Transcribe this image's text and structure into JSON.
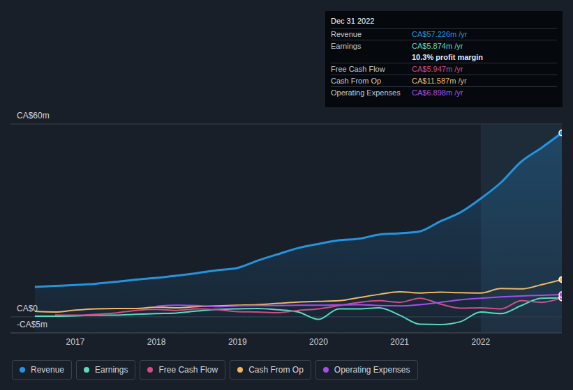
{
  "chart_data": {
    "type": "line",
    "x": [
      2016.5,
      2016.75,
      2017.0,
      2017.25,
      2017.5,
      2017.75,
      2018.0,
      2018.25,
      2018.5,
      2018.75,
      2019.0,
      2019.25,
      2019.5,
      2019.75,
      2020.0,
      2020.25,
      2020.5,
      2020.75,
      2021.0,
      2021.25,
      2021.5,
      2021.75,
      2022.0,
      2022.25,
      2022.5,
      2022.75,
      2023.0
    ],
    "series": [
      {
        "name": "Revenue",
        "type": "area",
        "color": "#2394df",
        "values": [
          9.3,
          9.6,
          9.9,
          10.3,
          10.9,
          11.6,
          12.1,
          12.8,
          13.6,
          14.5,
          15.2,
          17.5,
          19.5,
          21.4,
          22.7,
          23.8,
          24.3,
          25.6,
          26.0,
          26.6,
          29.7,
          32.5,
          36.8,
          41.8,
          48.3,
          52.6,
          57.226
        ]
      },
      {
        "name": "Earnings",
        "type": "line",
        "color": "#58dcc0",
        "values": [
          0.2,
          0.2,
          0.3,
          0.5,
          0.5,
          0.8,
          1.0,
          1.2,
          1.8,
          2.3,
          2.5,
          2.6,
          2.2,
          1.5,
          -0.8,
          2.5,
          2.5,
          2.8,
          0.5,
          -2.3,
          -2.4,
          -1.5,
          1.5,
          1.0,
          3.5,
          5.8,
          5.874
        ]
      },
      {
        "name": "Free Cash Flow",
        "type": "line",
        "color": "#d14d87",
        "values": [
          null,
          0.6,
          0.5,
          0.8,
          1.2,
          2.0,
          2.3,
          2.0,
          2.5,
          2.2,
          1.6,
          1.5,
          1.3,
          2.0,
          2.5,
          3.5,
          4.5,
          5.0,
          4.5,
          5.8,
          4.0,
          2.7,
          2.8,
          2.5,
          5.0,
          4.5,
          5.947
        ]
      },
      {
        "name": "Cash From Op",
        "type": "line",
        "color": "#f0b865",
        "values": [
          1.7,
          1.5,
          2.1,
          2.5,
          2.6,
          2.6,
          3.0,
          2.8,
          3.2,
          3.4,
          3.6,
          3.8,
          4.2,
          4.6,
          4.8,
          5.0,
          6.0,
          7.0,
          7.8,
          7.4,
          7.7,
          7.5,
          7.4,
          8.8,
          8.7,
          10.0,
          11.587
        ]
      },
      {
        "name": "Operating Expenses",
        "type": "line",
        "color": "#a54fe8",
        "values": [
          null,
          null,
          null,
          null,
          null,
          null,
          3.3,
          3.6,
          3.5,
          3.2,
          3.4,
          3.5,
          3.5,
          3.6,
          3.6,
          3.7,
          3.8,
          3.5,
          3.4,
          3.8,
          4.5,
          5.3,
          5.8,
          6.2,
          6.5,
          6.7,
          6.898
        ]
      }
    ],
    "xlim": [
      2016.2,
      2023.0
    ],
    "xticks": [
      2017,
      2018,
      2019,
      2020,
      2021,
      2022
    ],
    "ylim": [
      -5,
      60
    ],
    "yticks": [
      {
        "value": -5,
        "label": "-CA$5m"
      },
      {
        "value": 0,
        "label": "CA$0"
      },
      {
        "value": 60,
        "label": "CA$60m"
      }
    ],
    "grid": true,
    "legend": "bottom",
    "shaded_x": [
      2022,
      2023.0
    ],
    "annotations": {
      "title": "Dec 31 2022",
      "rows": [
        {
          "label": "Revenue",
          "value": "CA$57.226m /yr"
        },
        {
          "label": "Earnings",
          "value": "CA$5.874m /yr"
        },
        {
          "label": "Free Cash Flow",
          "value": "CA$5.947m /yr"
        },
        {
          "label": "Cash From Op",
          "value": "CA$11.587m /yr"
        },
        {
          "label": "Operating Expenses",
          "value": "CA$6.898m /yr"
        }
      ],
      "note": "10.3% profit margin"
    }
  }
}
